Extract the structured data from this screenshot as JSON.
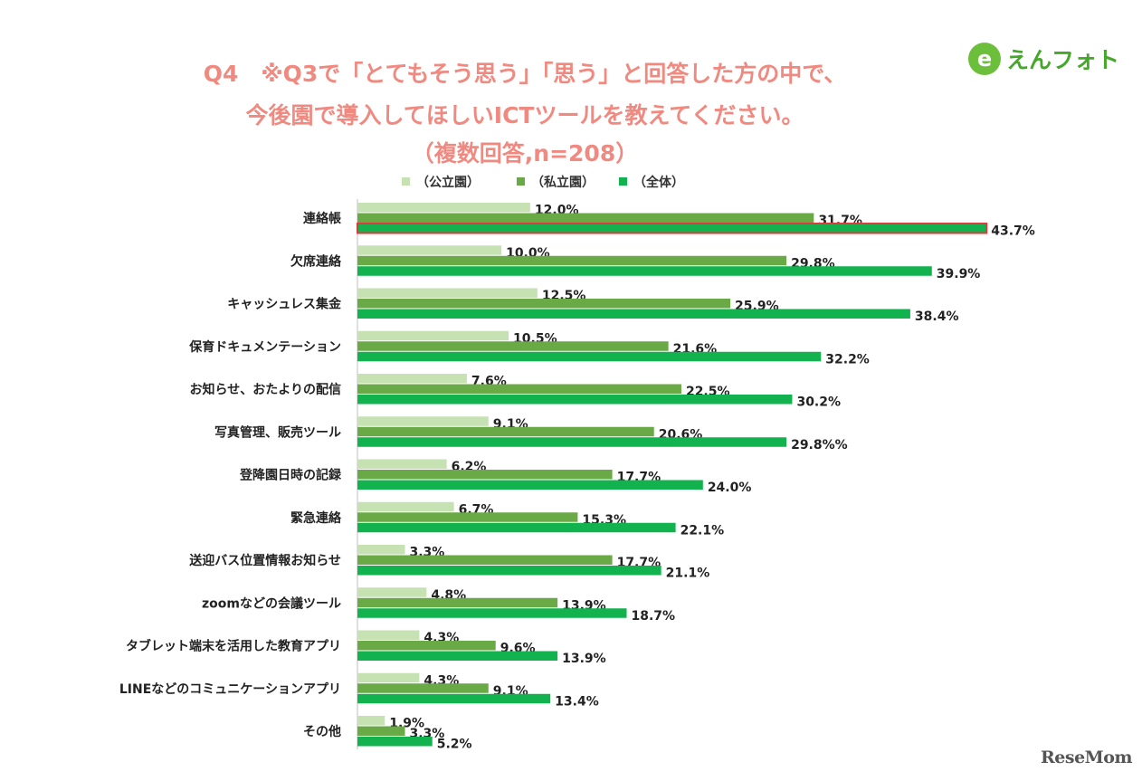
{
  "header": {
    "title_line1": "Q4　※Q3で「とてもそう思う」「思う」と回答した方の中で、",
    "title_line2": "今後園で導入してほしいICTツールを教えてください。",
    "title_line3": "（複数回答,n=208）"
  },
  "logo": {
    "mark": "e",
    "text": "えんフォト"
  },
  "watermark": "ReseMom",
  "colors": {
    "public": "#c6e2b2",
    "private": "#6aaa46",
    "total": "#12b24e",
    "highlight": "#e0393e",
    "title": "#f08a80"
  },
  "chart_data": {
    "type": "bar",
    "orientation": "horizontal",
    "legend_position": "top",
    "xlim": [
      0,
      45
    ],
    "grid": false,
    "categories": [
      "連絡帳",
      "欠席連絡",
      "キャッシュレス集金",
      "保育ドキュメンテーション",
      "お知らせ、おたよりの配信",
      "写真管理、販売ツール",
      "登降園日時の記録",
      "緊急連絡",
      "送迎バス位置情報お知らせ",
      "zoomなどの会議ツール",
      "タブレット端末を活用した教育アプリ",
      "LINEなどのコミュニケーションアプリ",
      "その他"
    ],
    "series": [
      {
        "name": "（公立園）",
        "color": "#c6e2b2",
        "values": [
          12.0,
          10.0,
          12.5,
          10.5,
          7.6,
          9.1,
          6.2,
          6.7,
          3.3,
          4.8,
          4.3,
          4.3,
          1.9
        ],
        "labels": [
          "12.0%",
          "10.0%",
          "12.5%",
          "10.5%",
          "7.6%",
          "9.1%",
          "6.2%",
          "6.7%",
          "3.3%",
          "4.8%",
          "4.3%",
          "4.3%",
          "1.9%"
        ]
      },
      {
        "name": "（私立園）",
        "color": "#6aaa46",
        "values": [
          31.7,
          29.8,
          25.9,
          21.6,
          22.5,
          20.6,
          17.7,
          15.3,
          17.7,
          13.9,
          9.6,
          9.1,
          3.3
        ],
        "labels": [
          "31.7%",
          "29.8%",
          "25.9%",
          "21.6%",
          "22.5%",
          "20.6%",
          "17.7%",
          "15.3%",
          "17.7%",
          "13.9%",
          "9.6%",
          "9.1%",
          "3.3%"
        ]
      },
      {
        "name": "（全体）",
        "color": "#12b24e",
        "values": [
          43.7,
          39.9,
          38.4,
          32.2,
          30.2,
          29.8,
          24.0,
          22.1,
          21.1,
          18.7,
          13.9,
          13.4,
          5.2
        ],
        "labels": [
          "43.7%",
          "39.9%",
          "38.4%",
          "32.2%",
          "30.2%",
          "29.8%%",
          "24.0%",
          "22.1%",
          "21.1%",
          "18.7%",
          "13.9%",
          "13.4%",
          "5.2%"
        ]
      }
    ],
    "highlight": {
      "category_index": 0,
      "series_index": 2
    }
  }
}
